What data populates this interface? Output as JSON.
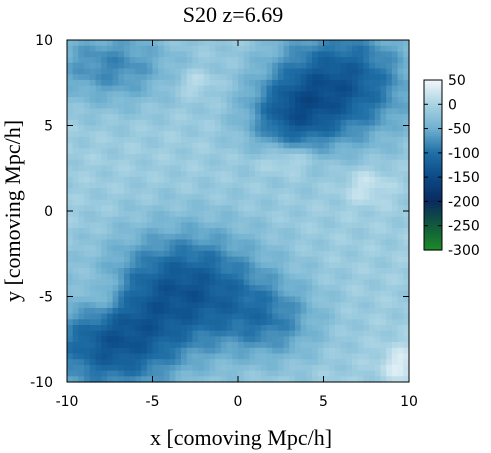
{
  "chart_data": {
    "type": "heatmap",
    "title": "S20 z=6.69",
    "xlabel": "x [comoving Mpc/h]",
    "ylabel": "y [comoving Mpc/h]",
    "xlim": [
      -10,
      10
    ],
    "ylim": [
      -10,
      10
    ],
    "xticks": [
      -10,
      -5,
      0,
      5,
      10
    ],
    "yticks": [
      -10,
      -5,
      0,
      5,
      10
    ],
    "colorbar": {
      "range": [
        -300,
        50
      ],
      "ticks": [
        50,
        0,
        -50,
        -100,
        -150,
        -200,
        -250,
        -300
      ],
      "colors": [
        {
          "value": 50,
          "color": "#f2f8fb"
        },
        {
          "value": 0,
          "color": "#a9d3e3"
        },
        {
          "value": -50,
          "color": "#6fb0cf"
        },
        {
          "value": -100,
          "color": "#1f6fa6"
        },
        {
          "value": -150,
          "color": "#0b4a86"
        },
        {
          "value": -200,
          "color": "#0a2a5e"
        },
        {
          "value": -250,
          "color": "#105a3c"
        },
        {
          "value": -300,
          "color": "#1e8a28"
        }
      ]
    },
    "grid": false,
    "features": [
      {
        "kind": "absorption",
        "x": 6.0,
        "y": 7.5,
        "sx": 2.8,
        "sy": 2.4,
        "depth": -120
      },
      {
        "kind": "absorption",
        "x": 3.0,
        "y": 5.5,
        "sx": 1.8,
        "sy": 1.6,
        "depth": -80
      },
      {
        "kind": "absorption",
        "x": -7.5,
        "y": 8.5,
        "sx": 2.6,
        "sy": 1.6,
        "depth": -70
      },
      {
        "kind": "absorption",
        "x": -3.0,
        "y": -4.5,
        "sx": 3.2,
        "sy": 2.4,
        "depth": -120
      },
      {
        "kind": "absorption",
        "x": -7.5,
        "y": -8.0,
        "sx": 2.8,
        "sy": 2.0,
        "depth": -110
      },
      {
        "kind": "absorption",
        "x": 2.0,
        "y": -6.5,
        "sx": 2.0,
        "sy": 1.6,
        "depth": -60
      },
      {
        "kind": "emission",
        "x": 3.0,
        "y": 3.0,
        "sx": 1.2,
        "sy": 0.6,
        "depth": 45
      },
      {
        "kind": "emission",
        "x": 7.5,
        "y": 1.5,
        "sx": 1.0,
        "sy": 0.8,
        "depth": 35
      },
      {
        "kind": "emission",
        "x": -8.0,
        "y": -5.0,
        "sx": 1.0,
        "sy": 1.0,
        "depth": 40
      },
      {
        "kind": "emission",
        "x": 9.5,
        "y": -9.0,
        "sx": 0.8,
        "sy": 0.8,
        "depth": 45
      },
      {
        "kind": "emission",
        "x": -2.5,
        "y": 7.5,
        "sx": 0.8,
        "sy": 0.5,
        "depth": 30
      }
    ],
    "background": -10
  }
}
